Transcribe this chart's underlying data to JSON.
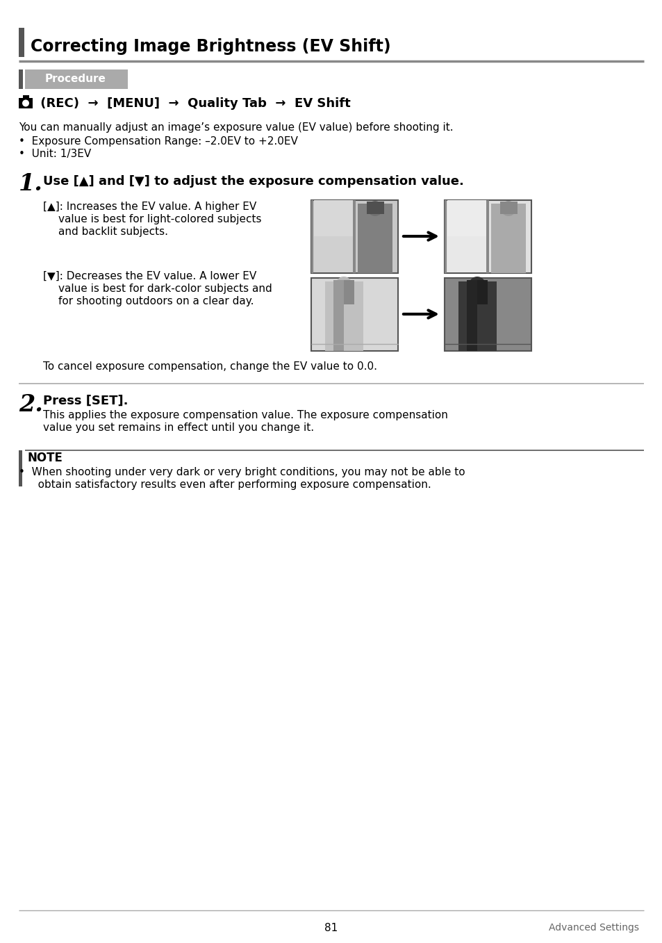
{
  "title": "Correcting Image Brightness (EV Shift)",
  "procedure_label": "Procedure",
  "nav_text": " (REC)  →  [MENU]  →  Quality Tab  →  EV Shift",
  "intro_line1": "You can manually adjust an image’s exposure value (EV value) before shooting it.",
  "bullet1": "•  Exposure Compensation Range: –2.0EV to +2.0EV",
  "bullet2": "•  Unit: 1/3EV",
  "step1_text": "Use [▲] and [▼] to adjust the exposure compensation value.",
  "up_line1": "[▲]: Increases the EV value. A higher EV",
  "up_line2": "value is best for light-colored subjects",
  "up_line3": "and backlit subjects.",
  "down_line1": "[▼]: Decreases the EV value. A lower EV",
  "down_line2": "value is best for dark-color subjects and",
  "down_line3": "for shooting outdoors on a clear day.",
  "cancel_text": "To cancel exposure compensation, change the EV value to 0.0.",
  "step2_bold": "Press [SET].",
  "step2_line1": "This applies the exposure compensation value. The exposure compensation",
  "step2_line2": "value you set remains in effect until you change it.",
  "note_label": "NOTE",
  "note_line1": "•  When shooting under very dark or very bright conditions, you may not be able to",
  "note_line2": "   obtain satisfactory results even after performing exposure compensation.",
  "footer_page": "81",
  "footer_right": "Advanced Settings",
  "bg_color": "#ffffff",
  "dark_bar_color": "#555555",
  "proc_bg_color": "#aaaaaa",
  "line_color": "#999999",
  "text_color": "#000000"
}
